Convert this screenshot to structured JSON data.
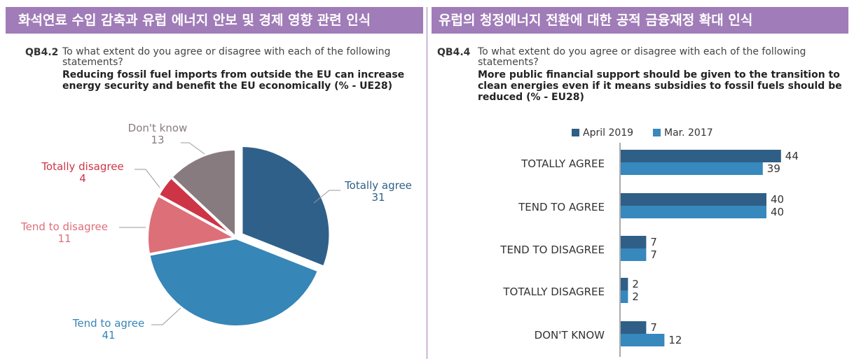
{
  "panels": {
    "left": {
      "banner": "화석연료 수입 감축과 유럽 에너지 안보 및 경제 영향 관련 인식",
      "question_code": "QB4.2",
      "question_text": "To what extent do you agree or disagree with each of the following statements?",
      "statement": "Reducing fossil fuel imports from outside the EU can increase energy security and benefit the EU economically (% - UE28)"
    },
    "right": {
      "banner": "유럽의 청정에너지 전환에 대한 공적 금융재정 확대 인식",
      "question_code": "QB4.4",
      "question_text": "To what extent do you agree or disagree with each of the following statements?",
      "statement": "More public financial support should be given to the transition to clean energies even if it means subsidies to fossil fuels should be reduced (% - EU28)"
    }
  },
  "chart_data": [
    {
      "type": "pie",
      "labels": [
        "Totally agree",
        "Tend to agree",
        "Tend to disagree",
        "Totally disagree",
        "Don't know"
      ],
      "values": [
        31,
        41,
        11,
        4,
        13
      ],
      "colors": [
        "#2f6089",
        "#3686b7",
        "#dd6f79",
        "#cd3546",
        "#887b80"
      ]
    },
    {
      "type": "bar",
      "orientation": "horizontal",
      "categories": [
        "TOTALLY AGREE",
        "TEND TO AGREE",
        "TEND TO DISAGREE",
        "TOTALLY DISAGREE",
        "DON'T KNOW"
      ],
      "series": [
        {
          "name": "April 2019",
          "values": [
            44,
            40,
            7,
            2,
            7
          ],
          "color": "#2f5f86"
        },
        {
          "name": "Mar. 2017",
          "values": [
            39,
            40,
            7,
            2,
            12
          ],
          "color": "#3688bd"
        }
      ]
    }
  ]
}
